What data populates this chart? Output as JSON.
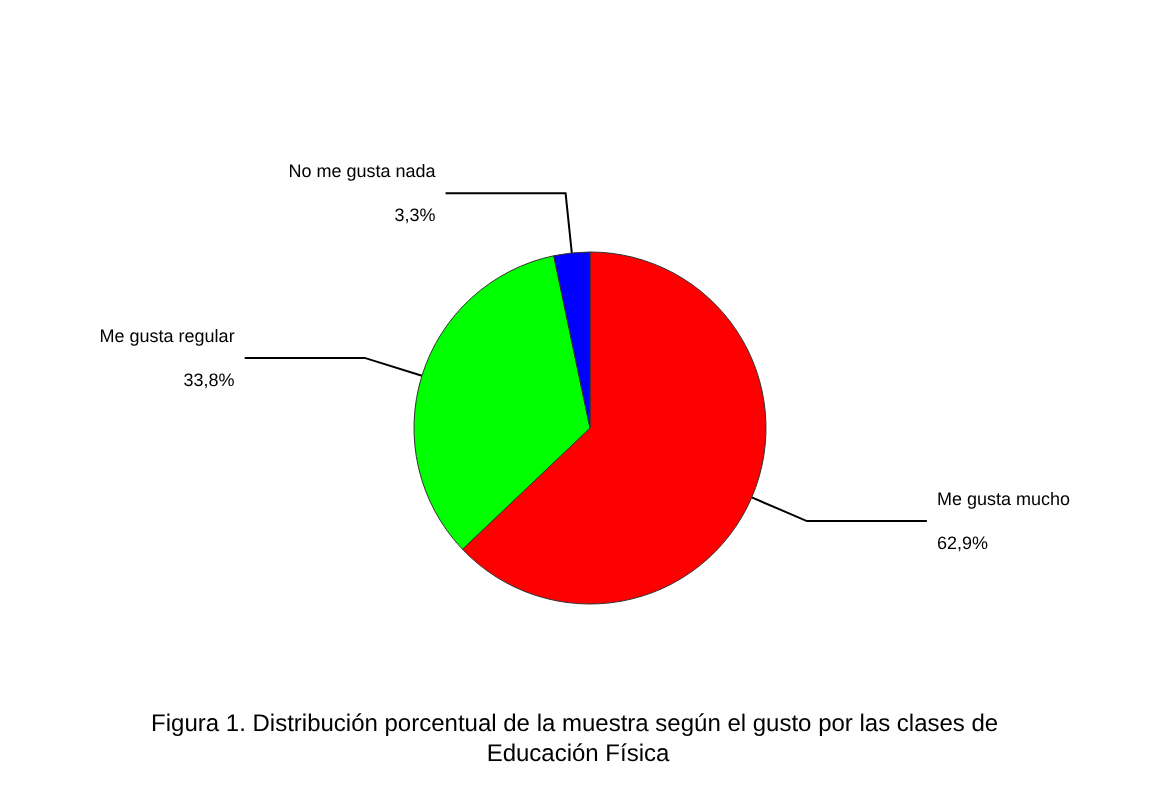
{
  "chart_data": {
    "type": "pie",
    "categories": [
      "Me gusta mucho",
      "Me gusta regular",
      "No me gusta nada"
    ],
    "values": [
      62.9,
      33.8,
      3.3
    ],
    "value_labels": [
      "62,9%",
      "33,8%",
      "3,3%"
    ],
    "colors": [
      "#ff0000",
      "#00ff00",
      "#0000ff"
    ],
    "legend": false,
    "annotations": [
      "Figura 1. Distribución porcentual de la muestra según el gusto por las clases de Educación Física"
    ]
  }
}
